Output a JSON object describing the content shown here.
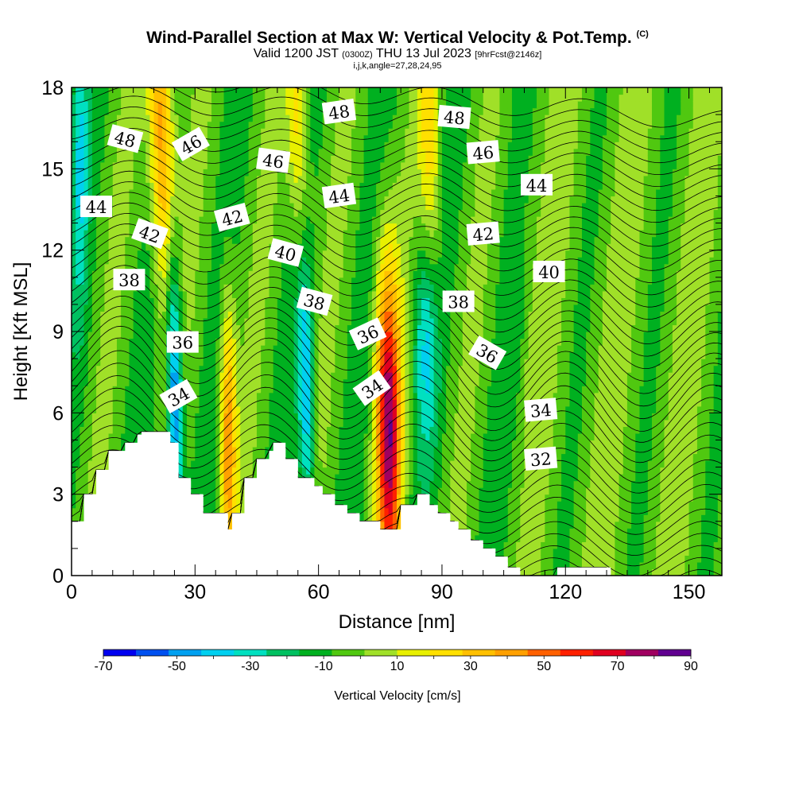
{
  "header": {
    "title": "Wind-Parallel Section at Max W: Vertical Velocity & Pot.Temp.",
    "copyright": "(C)",
    "valid_prefix": "Valid 1200 JST",
    "utc": "(0300Z)",
    "valid_date": "THU 13 Jul 2023",
    "forecast": "[9hrFcst@2146z]",
    "params": "i,j,k,angle=27,28,24,95"
  },
  "chart_data": {
    "type": "heatmap",
    "title": "Wind-Parallel Section at Max W: Vertical Velocity & Pot.Temp.",
    "xlabel": "Distance [nm]",
    "ylabel": "Height [Kft MSL]",
    "xlim": [
      0,
      158
    ],
    "ylim": [
      0,
      18
    ],
    "x_ticks": [
      "0",
      "30",
      "60",
      "90",
      "120",
      "150"
    ],
    "x_tick_values": [
      0,
      30,
      60,
      90,
      120,
      150
    ],
    "y_ticks": [
      "0",
      "3",
      "6",
      "9",
      "12",
      "15",
      "18"
    ],
    "y_tick_values": [
      0,
      3,
      6,
      9,
      12,
      15,
      18
    ],
    "colorbar": {
      "title": "Vertical Velocity [cm/s]",
      "min": -70,
      "max": 90,
      "step": 10,
      "labels": [
        "-70",
        "-50",
        "-30",
        "-10",
        "10",
        "30",
        "50",
        "70",
        "90"
      ],
      "label_values": [
        -70,
        -50,
        -30,
        -10,
        10,
        30,
        50,
        70,
        90
      ],
      "colors": [
        "#0000f0",
        "#0050f0",
        "#00a0f0",
        "#00d0f0",
        "#00e0c0",
        "#00c060",
        "#00b020",
        "#50c810",
        "#a0e028",
        "#e8f000",
        "#ffe000",
        "#ffc000",
        "#ffa000",
        "#ff6000",
        "#ff2000",
        "#e00020",
        "#a00060",
        "#600090"
      ]
    },
    "terrain_profile": {
      "x": [
        0,
        3,
        3,
        6,
        6,
        9,
        9,
        13,
        13,
        16,
        16,
        17,
        17,
        20,
        20,
        24,
        24,
        26,
        26,
        29,
        29,
        32,
        32,
        38,
        38,
        39,
        39,
        42,
        42,
        45,
        45,
        48,
        48,
        49,
        49,
        52,
        52,
        55,
        55,
        59,
        59,
        61,
        61,
        64,
        64,
        67,
        67,
        70,
        70,
        75,
        75,
        78,
        78,
        80,
        80,
        84,
        84,
        87,
        87,
        89,
        89,
        92,
        92,
        94,
        94,
        97,
        97,
        100,
        100,
        103,
        103,
        106,
        106,
        109,
        109,
        112,
        112,
        118,
        118,
        119,
        119,
        131,
        131,
        142,
        142,
        158
      ],
      "h": [
        2.0,
        2.0,
        3.0,
        3.0,
        3.9,
        3.9,
        4.6,
        4.6,
        4.9,
        4.9,
        5.2,
        5.2,
        5.3,
        5.3,
        5.3,
        5.3,
        4.9,
        4.9,
        3.6,
        3.6,
        3.0,
        3.0,
        2.3,
        2.3,
        1.7,
        1.7,
        2.3,
        2.3,
        3.6,
        3.6,
        4.3,
        4.3,
        4.6,
        4.6,
        4.9,
        4.9,
        4.3,
        4.3,
        3.6,
        3.6,
        3.3,
        3.3,
        3.0,
        3.0,
        2.6,
        2.6,
        2.3,
        2.3,
        2.0,
        2.0,
        1.7,
        1.7,
        1.7,
        1.7,
        2.6,
        2.6,
        3.0,
        3.0,
        2.6,
        2.6,
        2.3,
        2.3,
        2.0,
        2.0,
        1.7,
        1.7,
        1.3,
        1.3,
        1.0,
        1.0,
        0.7,
        0.7,
        0.3,
        0.3,
        0.0,
        0.0,
        0.0,
        0.0,
        0.3,
        0.3,
        0.3,
        0.3,
        0.0,
        0.0,
        0.0,
        0.0
      ]
    },
    "isentrope_labels": [
      {
        "text": "48",
        "x": 13,
        "y": 16.1,
        "rot": 15
      },
      {
        "text": "46",
        "x": 29,
        "y": 15.9,
        "rot": -30
      },
      {
        "text": "48",
        "x": 65,
        "y": 17.1,
        "rot": -8
      },
      {
        "text": "48",
        "x": 93,
        "y": 16.9,
        "rot": 5
      },
      {
        "text": "46",
        "x": 49,
        "y": 15.3,
        "rot": 8
      },
      {
        "text": "46",
        "x": 100,
        "y": 15.6,
        "rot": -5
      },
      {
        "text": "44",
        "x": 6,
        "y": 13.6,
        "rot": 0
      },
      {
        "text": "44",
        "x": 65,
        "y": 14.0,
        "rot": -8
      },
      {
        "text": "44",
        "x": 113,
        "y": 14.4,
        "rot": 0
      },
      {
        "text": "42",
        "x": 19,
        "y": 12.6,
        "rot": 20
      },
      {
        "text": "42",
        "x": 39,
        "y": 13.2,
        "rot": -15
      },
      {
        "text": "42",
        "x": 100,
        "y": 12.6,
        "rot": -5
      },
      {
        "text": "40",
        "x": 52,
        "y": 11.9,
        "rot": 15
      },
      {
        "text": "40",
        "x": 116,
        "y": 11.2,
        "rot": 0
      },
      {
        "text": "38",
        "x": 14,
        "y": 10.9,
        "rot": 0
      },
      {
        "text": "38",
        "x": 59,
        "y": 10.1,
        "rot": 15
      },
      {
        "text": "38",
        "x": 94,
        "y": 10.1,
        "rot": 0
      },
      {
        "text": "36",
        "x": 27,
        "y": 8.6,
        "rot": 0
      },
      {
        "text": "36",
        "x": 72,
        "y": 8.9,
        "rot": -25
      },
      {
        "text": "36",
        "x": 101,
        "y": 8.2,
        "rot": 30
      },
      {
        "text": "34",
        "x": 26,
        "y": 6.6,
        "rot": -30
      },
      {
        "text": "34",
        "x": 73,
        "y": 6.9,
        "rot": -35
      },
      {
        "text": "34",
        "x": 114,
        "y": 6.1,
        "rot": -5
      },
      {
        "text": "32",
        "x": 114,
        "y": 4.3,
        "rot": -5
      }
    ],
    "updraft_cores": [
      {
        "x": 22,
        "y": 16.0,
        "value": 60,
        "rx": 3,
        "ry": 3,
        "angle": -14
      },
      {
        "x": 38,
        "y": 5.0,
        "value": 55,
        "rx": 2,
        "ry": 2.4,
        "angle": 0
      },
      {
        "x": 77,
        "y": 5.5,
        "value": 90,
        "rx": 3,
        "ry": 2.8,
        "angle": -5
      },
      {
        "x": 55,
        "y": 16.5,
        "value": 35,
        "rx": 2.5,
        "ry": 2.5,
        "angle": -12
      },
      {
        "x": 87,
        "y": 16.0,
        "value": 30,
        "rx": 2.5,
        "ry": 2.5,
        "angle": -12
      }
    ],
    "downdraft_cores": [
      {
        "x": 25,
        "y": 7.0,
        "value": -65,
        "rx": 2,
        "ry": 2.6,
        "angle": -5
      },
      {
        "x": 57,
        "y": 7.0,
        "value": -45,
        "rx": 2,
        "ry": 2.4,
        "angle": -6
      },
      {
        "x": 2,
        "y": 15.5,
        "value": -30,
        "rx": 2,
        "ry": 2.5,
        "angle": 0
      },
      {
        "x": 86,
        "y": 8.5,
        "value": -30,
        "rx": 3,
        "ry": 1.8,
        "angle": -10
      }
    ]
  }
}
